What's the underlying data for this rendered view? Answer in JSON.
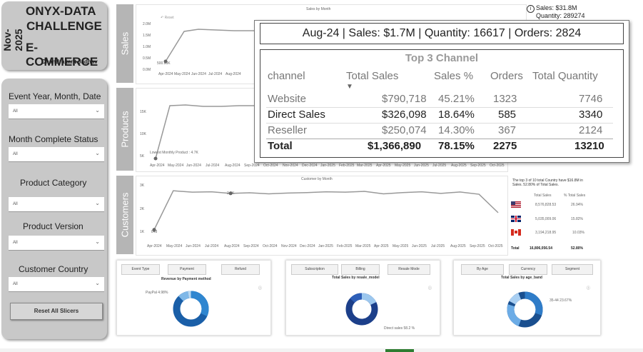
{
  "title_panel": {
    "date_vertical": "Nov-2025",
    "line1": "ONYX-DATA",
    "line2": "CHALLENGE",
    "line3": "E-COMMERCE",
    "author": "Chandrakant Jadhav"
  },
  "slicers": [
    {
      "label": "Event Year, Month, Date",
      "value": "All"
    },
    {
      "label": "Month Complete Status",
      "value": "All"
    },
    {
      "label": "Product Category",
      "value": "All"
    },
    {
      "label": "Product Version",
      "value": "All"
    },
    {
      "label": "Customer Country",
      "value": "All"
    }
  ],
  "reset_button": "Reset All Slicers",
  "section_labels": {
    "sales": "Sales",
    "products": "Products",
    "customers": "Customers"
  },
  "sales_chart": {
    "title": "Sales by Month",
    "reset_label": "Reset",
    "yticks": [
      "2.0M",
      "1.5M",
      "1.0M",
      "0.5M",
      "0.0M"
    ],
    "first_label": "500.00K"
  },
  "kpi_top": {
    "sales": "Sales: $31.8M",
    "quantity": "Quantity: 289274"
  },
  "products_chart": {
    "yticks": [
      "15K",
      "10K",
      "5K"
    ],
    "annotation": "Lowest Monthly Product : 4.7K"
  },
  "months": [
    "Apr-2024",
    "May-2024",
    "Jun-2024",
    "Jul-2024",
    "Aug-2024",
    "Sep-2024",
    "Oct-2024",
    "Nov-2024",
    "Dec-2024",
    "Jan-2025",
    "Feb-2025",
    "Mar-2025",
    "Apr-2025",
    "May-2025",
    "Jun-2025",
    "Jul-2025",
    "Aug-2025",
    "Sep-2025",
    "Oct-2025"
  ],
  "customers_chart": {
    "title": "Customer by Month",
    "yticks": [
      "3K",
      "2K",
      "1K"
    ],
    "peak_label": "2.8K",
    "first_label": "848",
    "values": [
      848,
      2750,
      2680,
      2700,
      2620,
      2650,
      2600,
      2640,
      2660,
      2700,
      2680,
      2720,
      2600,
      2660,
      2700,
      2620,
      2690,
      2580,
      1680
    ]
  },
  "country_table": {
    "note": "The top 3 of 10 total Country have $16.8M in Sales. 52.80% of Total Sales.",
    "headers": [
      "Total Sales",
      "% Total Sales"
    ],
    "rows": [
      {
        "flag": "us-flag-icon",
        "sales": "8,576,828.53",
        "pct": "26.94%"
      },
      {
        "flag": "uk-flag-icon",
        "sales": "5,035,009.06",
        "pct": "15.82%"
      },
      {
        "flag": "ca-flag-icon",
        "sales": "3,194,218.95",
        "pct": "10.03%"
      }
    ],
    "total_label": "Total",
    "total_sales": "16,806,056.54",
    "total_pct": "52.80%"
  },
  "donut1": {
    "tabs": [
      "Event Type",
      "Payment",
      "Refund"
    ],
    "title": "Revenue by Payment method",
    "labels": [
      "PayPal 4.98%",
      "...",
      "..."
    ],
    "colors": [
      "#1a5fa8",
      "#2f86d0",
      "#7fb8e8",
      "#b9d8f2"
    ]
  },
  "donut2": {
    "tabs": [
      "Subscription",
      "Billing",
      "Resale Mode"
    ],
    "title": "Total Sales by resale_model",
    "labels": [
      "...",
      "...",
      "Direct sales 58.2 %"
    ],
    "colors": [
      "#1c3f8a",
      "#2e5fb8",
      "#9cc7ee"
    ]
  },
  "donut3": {
    "tabs": [
      "By Age",
      "Currency",
      "Segment"
    ],
    "title": "Total Sales by age_band",
    "labels": [
      "...",
      "...",
      "35-44 23.67%"
    ],
    "colors": [
      "#1a4f8f",
      "#2f7cc8",
      "#6cace6",
      "#a9cff2"
    ]
  },
  "tooltip": {
    "header": "Aug-24 | Sales: $1.7M | Quantity: 16617 | Orders: 2824",
    "table_title": "Top 3 Channel",
    "columns": [
      "channel",
      "Total Sales",
      "Sales %",
      "Orders",
      "Total Quantity"
    ],
    "rows": [
      {
        "channel": "Website",
        "sales": "$790,718",
        "pct": "45.21%",
        "orders": "1323",
        "qty": "7746"
      },
      {
        "channel": "Direct Sales",
        "sales": "$326,098",
        "pct": "18.64%",
        "orders": "585",
        "qty": "3340"
      },
      {
        "channel": "Reseller",
        "sales": "$250,074",
        "pct": "14.30%",
        "orders": "367",
        "qty": "2124"
      }
    ],
    "total": {
      "channel": "Total",
      "sales": "$1,366,890",
      "pct": "78.15%",
      "orders": "2275",
      "qty": "13210"
    }
  }
}
